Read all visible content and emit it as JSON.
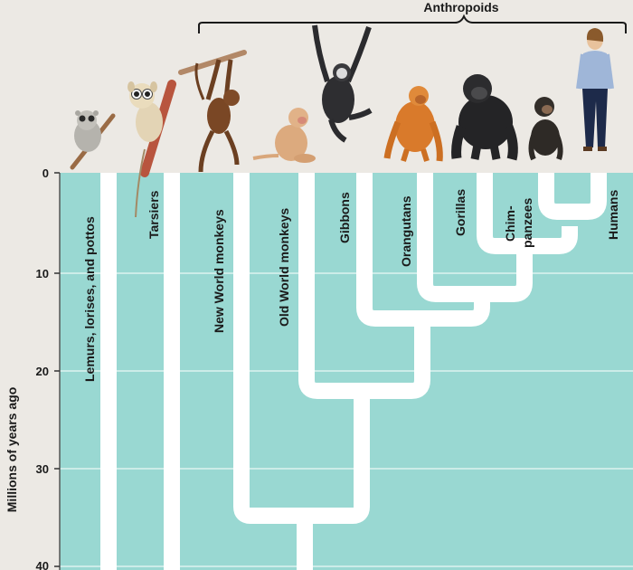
{
  "diagram": {
    "group_label": "Anthropoids",
    "y_axis_label": "Millions of years ago",
    "y_ticks": [
      "0",
      "10",
      "20",
      "30",
      "40"
    ],
    "taxa": [
      {
        "id": "lemurs",
        "label": "Lemurs, lorises, and pottos"
      },
      {
        "id": "tarsiers",
        "label": "Tarsiers"
      },
      {
        "id": "nwm",
        "label": "New World monkeys"
      },
      {
        "id": "owm",
        "label": "Old World monkeys"
      },
      {
        "id": "gibbons",
        "label": "Gibbons"
      },
      {
        "id": "orang",
        "label": "Orangutans"
      },
      {
        "id": "gorillas",
        "label": "Gorillas"
      },
      {
        "id": "chimp1",
        "label": "Chim-"
      },
      {
        "id": "chimp2",
        "label": "panzees"
      },
      {
        "id": "humans",
        "label": "Humans"
      }
    ],
    "colors": {
      "plot_bg": "#99d8d2",
      "branch": "#ffffff",
      "header_bg": "#ece9e4"
    }
  }
}
